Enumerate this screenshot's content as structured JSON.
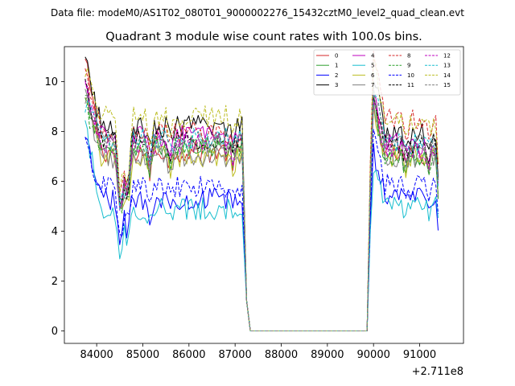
{
  "suptitle": "Data file: modeM0/AS1T02_080T01_9000002276_15432cztM0_level2_quad_clean.evt",
  "chart_data": {
    "type": "line",
    "title": "Quadrant 3 module wise count rates with 100.0s bins.",
    "xlabel": "",
    "ylabel": "",
    "x_offset_label": "+2.711e8",
    "xlim": [
      83300,
      91950
    ],
    "ylim": [
      -0.5,
      11.4
    ],
    "x_ticks": [
      84000,
      85000,
      86000,
      87000,
      88000,
      89000,
      90000,
      91000
    ],
    "x_tick_labels": [
      "84000",
      "85000",
      "86000",
      "87000",
      "88000",
      "89000",
      "90000",
      "91000"
    ],
    "y_ticks": [
      0,
      2,
      4,
      6,
      8,
      10
    ],
    "y_tick_labels": [
      "0",
      "2",
      "4",
      "6",
      "8",
      "10"
    ],
    "legend_position": "upper-right",
    "legend_columns": 4,
    "segments": [
      {
        "x_start": 83750,
        "x_end": 87180,
        "kind": "active"
      },
      {
        "x_start": 87180,
        "x_end": 87330,
        "kind": "drop"
      },
      {
        "x_start": 87330,
        "x_end": 89860,
        "kind": "zero"
      },
      {
        "x_start": 89860,
        "x_end": 90000,
        "kind": "rise"
      },
      {
        "x_start": 90000,
        "x_end": 91430,
        "kind": "active"
      }
    ],
    "series": [
      {
        "name": "0",
        "color": "#d62728",
        "style": "solid",
        "level_a": 7.2,
        "level_b": 7.1,
        "start": 10.8,
        "dip": 5.6,
        "end": 5.0
      },
      {
        "name": "1",
        "color": "#2ca02c",
        "style": "solid",
        "level_a": 7.4,
        "level_b": 7.0,
        "start": 9.3,
        "dip": 5.2,
        "end": 5.0
      },
      {
        "name": "2",
        "color": "#0000ff",
        "style": "solid",
        "level_a": 5.3,
        "level_b": 5.5,
        "start": 7.6,
        "dip": 4.2,
        "end": 3.7
      },
      {
        "name": "3",
        "color": "#000000",
        "style": "solid",
        "level_a": 8.2,
        "level_b": 8.0,
        "start": 10.8,
        "dip": 5.9,
        "end": 5.6
      },
      {
        "name": "4",
        "color": "#bf00bf",
        "style": "solid",
        "level_a": 7.8,
        "level_b": 7.5,
        "start": 9.7,
        "dip": 5.5,
        "end": 5.4
      },
      {
        "name": "5",
        "color": "#17becf",
        "style": "solid",
        "level_a": 4.9,
        "level_b": 5.0,
        "start": 8.2,
        "dip": 3.5,
        "end": 4.8
      },
      {
        "name": "6",
        "color": "#bcbd22",
        "style": "solid",
        "level_a": 7.0,
        "level_b": 7.0,
        "start": 9.1,
        "dip": 5.0,
        "end": 5.0
      },
      {
        "name": "7",
        "color": "#7f7f7f",
        "style": "solid",
        "level_a": 7.0,
        "level_b": 7.0,
        "start": 9.4,
        "dip": 5.0,
        "end": 4.8
      },
      {
        "name": "8",
        "color": "#d62728",
        "style": "dashed",
        "level_a": 8.0,
        "level_b": 8.5,
        "start": 10.2,
        "dip": 5.8,
        "end": 6.0
      },
      {
        "name": "9",
        "color": "#2ca02c",
        "style": "dashed",
        "level_a": 7.4,
        "level_b": 7.0,
        "start": 9.0,
        "dip": 5.2,
        "end": 4.8
      },
      {
        "name": "10",
        "color": "#0000ff",
        "style": "dashed",
        "level_a": 5.8,
        "level_b": 5.9,
        "start": 7.4,
        "dip": 4.3,
        "end": 4.5
      },
      {
        "name": "11",
        "color": "#000000",
        "style": "dashed",
        "level_a": 7.7,
        "level_b": 7.5,
        "start": 9.7,
        "dip": 5.2,
        "end": 5.7
      },
      {
        "name": "12",
        "color": "#bf00bf",
        "style": "dashed",
        "level_a": 7.5,
        "level_b": 7.3,
        "start": 9.6,
        "dip": 5.4,
        "end": 5.6
      },
      {
        "name": "13",
        "color": "#17becf",
        "style": "dashed",
        "level_a": 7.7,
        "level_b": 7.5,
        "start": 9.2,
        "dip": 5.3,
        "end": 5.3
      },
      {
        "name": "14",
        "color": "#bcbd22",
        "style": "dashed",
        "level_a": 8.6,
        "level_b": 8.4,
        "start": 10.6,
        "dip": 6.0,
        "end": 6.3
      },
      {
        "name": "15",
        "color": "#7f7f7f",
        "style": "dashed",
        "level_a": 7.6,
        "level_b": 7.5,
        "start": 9.5,
        "dip": 5.2,
        "end": 5.6
      }
    ]
  }
}
